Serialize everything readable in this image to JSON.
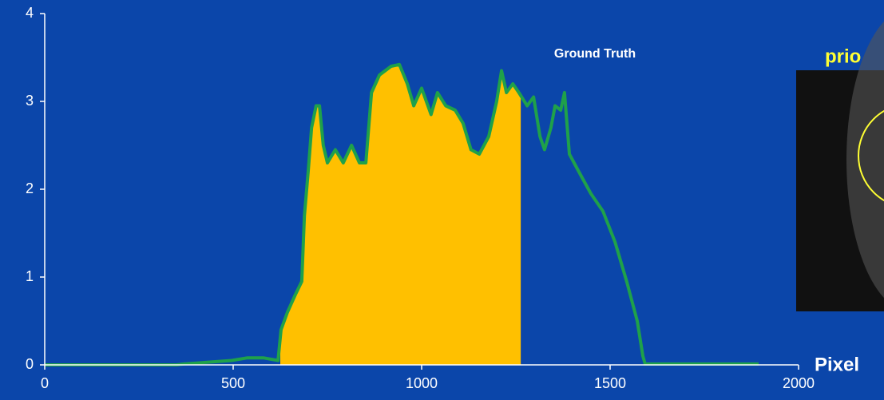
{
  "chart_data": {
    "type": "line",
    "annotation": "Ground Truth",
    "side_label": "prio",
    "x_label": "Pixel",
    "x": [
      0,
      350,
      369,
      496,
      538,
      580,
      619,
      627,
      644,
      665,
      682,
      689,
      699,
      708,
      720,
      729,
      739,
      750,
      771,
      792,
      814,
      835,
      852,
      867,
      888,
      919,
      941,
      962,
      979,
      1000,
      1025,
      1042,
      1064,
      1089,
      1110,
      1131,
      1153,
      1178,
      1199,
      1212,
      1225,
      1242,
      1258,
      1280,
      1297,
      1314,
      1326,
      1343,
      1354,
      1369,
      1379,
      1392,
      1417,
      1449,
      1481,
      1513,
      1544,
      1572,
      1587,
      1593,
      1894
    ],
    "series": [
      {
        "color": "#1fa14a",
        "values": [
          0,
          0,
          0.01,
          0.05,
          0.08,
          0.08,
          0.05,
          0.4,
          0.6,
          0.8,
          0.95,
          1.7,
          2.2,
          2.7,
          2.95,
          2.95,
          2.5,
          2.3,
          2.45,
          2.3,
          2.5,
          2.3,
          2.3,
          3.1,
          3.3,
          3.4,
          3.42,
          3.2,
          2.95,
          3.15,
          2.85,
          3.1,
          2.95,
          2.9,
          2.75,
          2.45,
          2.4,
          2.6,
          3.0,
          3.35,
          3.1,
          3.2,
          3.1,
          2.95,
          3.05,
          2.6,
          2.45,
          2.7,
          2.95,
          2.9,
          3.1,
          2.4,
          2.2,
          1.95,
          1.75,
          1.4,
          0.95,
          0.5,
          0.1,
          0.01,
          0.01
        ]
      }
    ],
    "shade_range": [
      625,
      1263
    ],
    "shade_color": "#ffc000",
    "xlim": [
      0,
      2000
    ],
    "xticks": [
      0,
      500,
      1000,
      1500,
      2000
    ],
    "ylim": [
      0,
      4
    ],
    "yticks": [
      0,
      1,
      2,
      3,
      4
    ]
  }
}
